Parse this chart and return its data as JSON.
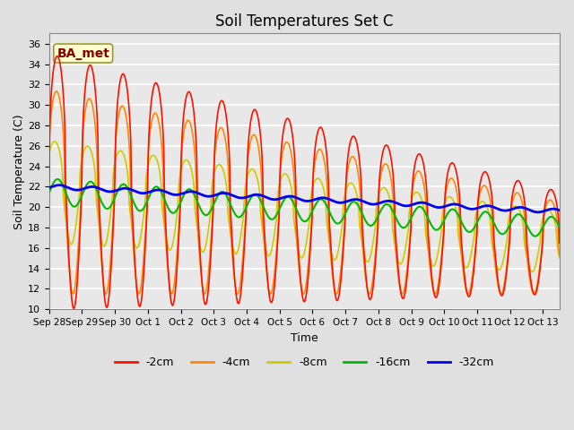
{
  "title": "Soil Temperatures Set C",
  "xlabel": "Time",
  "ylabel": "Soil Temperature (C)",
  "ylim": [
    10,
    37
  ],
  "yticks": [
    10,
    12,
    14,
    16,
    18,
    20,
    22,
    24,
    26,
    28,
    30,
    32,
    34,
    36
  ],
  "background_color": "#e0e0e0",
  "plot_bg_color": "#e8e8e8",
  "grid_color": "white",
  "legend_labels": [
    "-2cm",
    "-4cm",
    "-8cm",
    "-16cm",
    "-32cm"
  ],
  "legend_colors": [
    "#ff1100",
    "#ff8800",
    "#cccc00",
    "#00bb00",
    "#0000ee"
  ],
  "line_widths": [
    1.2,
    1.2,
    1.2,
    1.5,
    2.0
  ],
  "annotation_text": "BA_met",
  "annotation_bg": "#ffffcc",
  "annotation_border": "#999933",
  "num_days": 15.5,
  "points_per_day": 48,
  "x_tick_labels": [
    "Sep 28",
    "Sep 29",
    "Sep 30",
    "Oct 1",
    "Oct 2",
    "Oct 3",
    "Oct 4",
    "Oct 5",
    "Oct 6",
    "Oct 7",
    "Oct 8",
    "Oct 9",
    "Oct 10",
    "Oct 11",
    "Oct 12",
    "Oct 13"
  ]
}
